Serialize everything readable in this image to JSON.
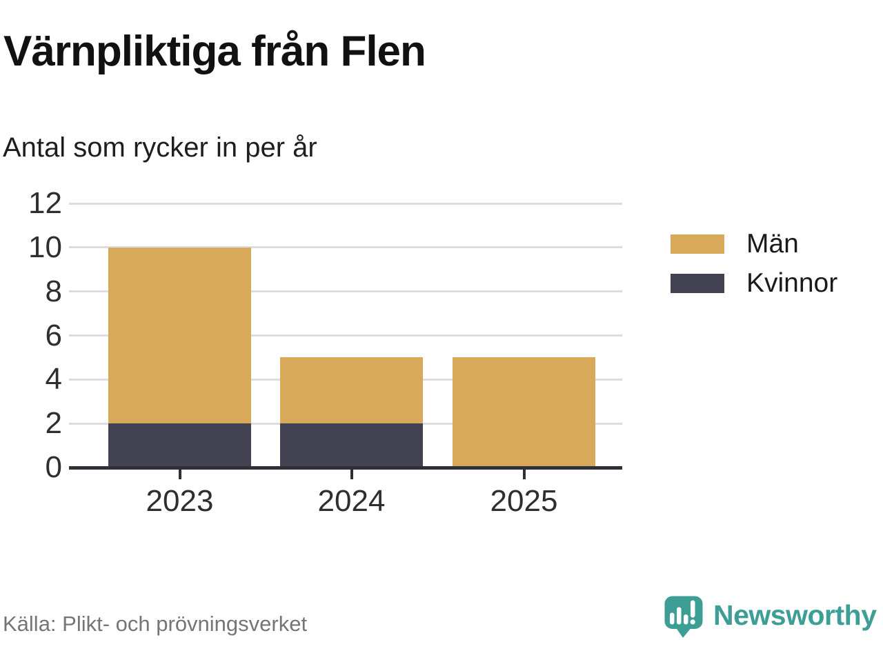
{
  "header": {
    "title": "Värnpliktiga från Flen",
    "subtitle": "Antal som rycker in per år"
  },
  "chart_data": {
    "type": "bar",
    "stacked": true,
    "title": "Värnpliktiga från Flen",
    "subtitle": "Antal som rycker in per år",
    "categories": [
      "2023",
      "2024",
      "2025"
    ],
    "series": [
      {
        "name": "Män",
        "color": "#D8A95A",
        "values": [
          8,
          3,
          5
        ]
      },
      {
        "name": "Kvinnor",
        "color": "#434253",
        "values": [
          2,
          2,
          0
        ]
      }
    ],
    "stack_bottom_series": "Kvinnor",
    "ylim": [
      0,
      12
    ],
    "yticks": [
      0,
      2,
      4,
      6,
      8,
      10,
      12
    ],
    "grid": "horizontal",
    "legend_position": "right"
  },
  "footer": {
    "source": "Källa: Plikt- och prövningsverket",
    "brand": "Newsworthy"
  },
  "colors": {
    "bar_gold": "#D8A95A",
    "bar_dark": "#434253",
    "axis": "#2E2F38",
    "gridline": "#DDDDDD",
    "tick_label": "#2E2E2E",
    "source_text": "#757575",
    "brand_teal": "#3D9E96"
  }
}
